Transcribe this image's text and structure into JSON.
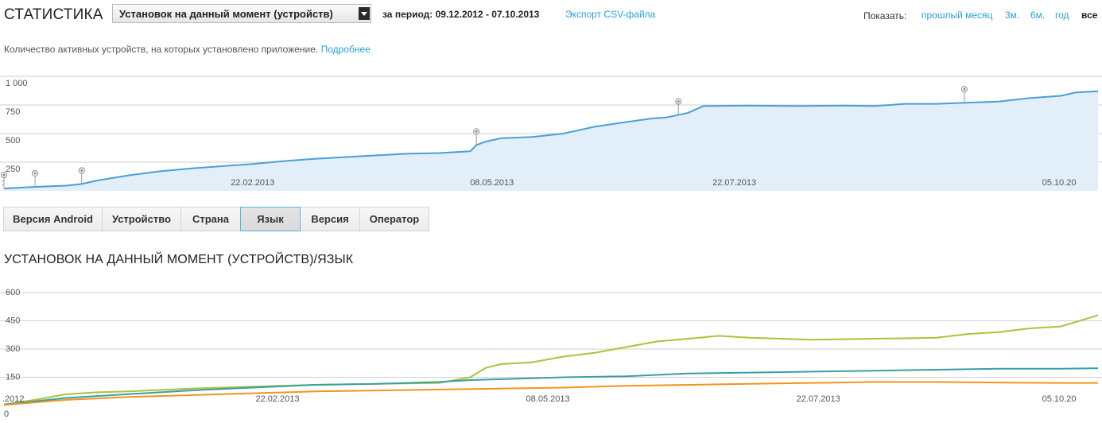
{
  "header": {
    "title": "СТАТИСТИКА",
    "metric_select": "Установок на данный момент (устройств)",
    "period_label": "за период:",
    "period_value": "09.12.2012 - 07.10.2013",
    "export_link": "Экспорт CSV-файла",
    "show_label": "Показать:",
    "ranges": [
      "прошлый месяц",
      "3м.",
      "6м.",
      "год",
      "все"
    ]
  },
  "description": {
    "text": "Количество активных устройств, на которых установлено приложение. ",
    "link": "Подробнее"
  },
  "colors": {
    "accent": "#2aa0d0",
    "main_line": "#4a9fd6",
    "main_fill": "#e2eff9",
    "series_green": "#a8c43a",
    "series_teal": "#3a9ea5",
    "series_orange": "#f0941e"
  },
  "tabs": [
    "Версия Android",
    "Устройство",
    "Страна",
    "Язык",
    "Версия",
    "Оператор"
  ],
  "active_tab": "Язык",
  "section_title": "УСТАНОВОК НА ДАННЫЙ МОМЕНТ (УСТРОЙСТВ)/ЯЗЫК",
  "chart_data": [
    {
      "type": "area",
      "ylim": [
        0,
        1000
      ],
      "y_ticks": [
        "1 000",
        "750",
        "500",
        "250"
      ],
      "x_tick_labels": [
        "22.02.2013",
        "08.05.2013",
        "22.07.2013",
        "05.10.20"
      ],
      "x_label_left": ":",
      "grid": true,
      "series": [
        {
          "values": [
            [
              0,
              20
            ],
            [
              10,
              35
            ],
            [
              20,
              45
            ],
            [
              25,
              60
            ],
            [
              30,
              90
            ],
            [
              40,
              135
            ],
            [
              50,
              170
            ],
            [
              60,
              195
            ],
            [
              70,
              215
            ],
            [
              80,
              235
            ],
            [
              90,
              260
            ],
            [
              100,
              280
            ],
            [
              110,
              295
            ],
            [
              120,
              310
            ],
            [
              130,
              325
            ],
            [
              140,
              330
            ],
            [
              150,
              345
            ],
            [
              152,
              400
            ],
            [
              155,
              430
            ],
            [
              160,
              460
            ],
            [
              170,
              470
            ],
            [
              180,
              500
            ],
            [
              185,
              530
            ],
            [
              190,
              560
            ],
            [
              200,
              600
            ],
            [
              208,
              630
            ],
            [
              213,
              640
            ],
            [
              220,
              680
            ],
            [
              225,
              740
            ],
            [
              240,
              745
            ],
            [
              255,
              740
            ],
            [
              270,
              745
            ],
            [
              280,
              740
            ],
            [
              290,
              760
            ],
            [
              300,
              760
            ],
            [
              310,
              770
            ],
            [
              320,
              780
            ],
            [
              330,
              810
            ],
            [
              340,
              830
            ],
            [
              345,
              860
            ],
            [
              352,
              870
            ]
          ]
        }
      ],
      "annotation_markers_x": [
        0,
        10,
        25,
        152,
        217,
        309
      ]
    },
    {
      "type": "line",
      "ylim": [
        0,
        600
      ],
      "y_ticks": [
        "600",
        "450",
        "300",
        "150",
        "0"
      ],
      "x_tick_labels": [
        ".2012",
        "22.02.2013",
        "08.05.2013",
        "22.07.2013",
        "05.10.20"
      ],
      "grid": true,
      "series": [
        {
          "color": "#a8c43a",
          "values": [
            [
              0,
              5
            ],
            [
              10,
              30
            ],
            [
              20,
              60
            ],
            [
              30,
              70
            ],
            [
              40,
              75
            ],
            [
              60,
              90
            ],
            [
              80,
              100
            ],
            [
              100,
              110
            ],
            [
              120,
              115
            ],
            [
              140,
              120
            ],
            [
              150,
              150
            ],
            [
              155,
              200
            ],
            [
              160,
              220
            ],
            [
              170,
              230
            ],
            [
              180,
              260
            ],
            [
              190,
              280
            ],
            [
              200,
              310
            ],
            [
              210,
              340
            ],
            [
              220,
              355
            ],
            [
              230,
              370
            ],
            [
              240,
              360
            ],
            [
              260,
              350
            ],
            [
              280,
              355
            ],
            [
              300,
              360
            ],
            [
              310,
              380
            ],
            [
              320,
              390
            ],
            [
              330,
              410
            ],
            [
              340,
              420
            ],
            [
              352,
              480
            ]
          ]
        },
        {
          "color": "#3a9ea5",
          "values": [
            [
              0,
              5
            ],
            [
              20,
              40
            ],
            [
              40,
              60
            ],
            [
              60,
              80
            ],
            [
              80,
              95
            ],
            [
              100,
              110
            ],
            [
              120,
              115
            ],
            [
              140,
              125
            ],
            [
              150,
              135
            ],
            [
              160,
              140
            ],
            [
              180,
              150
            ],
            [
              200,
              155
            ],
            [
              220,
              170
            ],
            [
              240,
              175
            ],
            [
              260,
              180
            ],
            [
              280,
              185
            ],
            [
              300,
              190
            ],
            [
              320,
              195
            ],
            [
              340,
              195
            ],
            [
              352,
              198
            ]
          ]
        },
        {
          "color": "#f0941e",
          "values": [
            [
              0,
              3
            ],
            [
              20,
              30
            ],
            [
              40,
              45
            ],
            [
              60,
              55
            ],
            [
              80,
              65
            ],
            [
              100,
              75
            ],
            [
              120,
              80
            ],
            [
              140,
              85
            ],
            [
              160,
              90
            ],
            [
              180,
              95
            ],
            [
              200,
              105
            ],
            [
              220,
              110
            ],
            [
              240,
              115
            ],
            [
              260,
              120
            ],
            [
              280,
              125
            ],
            [
              300,
              125
            ],
            [
              320,
              122
            ],
            [
              340,
              120
            ],
            [
              352,
              120
            ]
          ]
        }
      ]
    }
  ]
}
